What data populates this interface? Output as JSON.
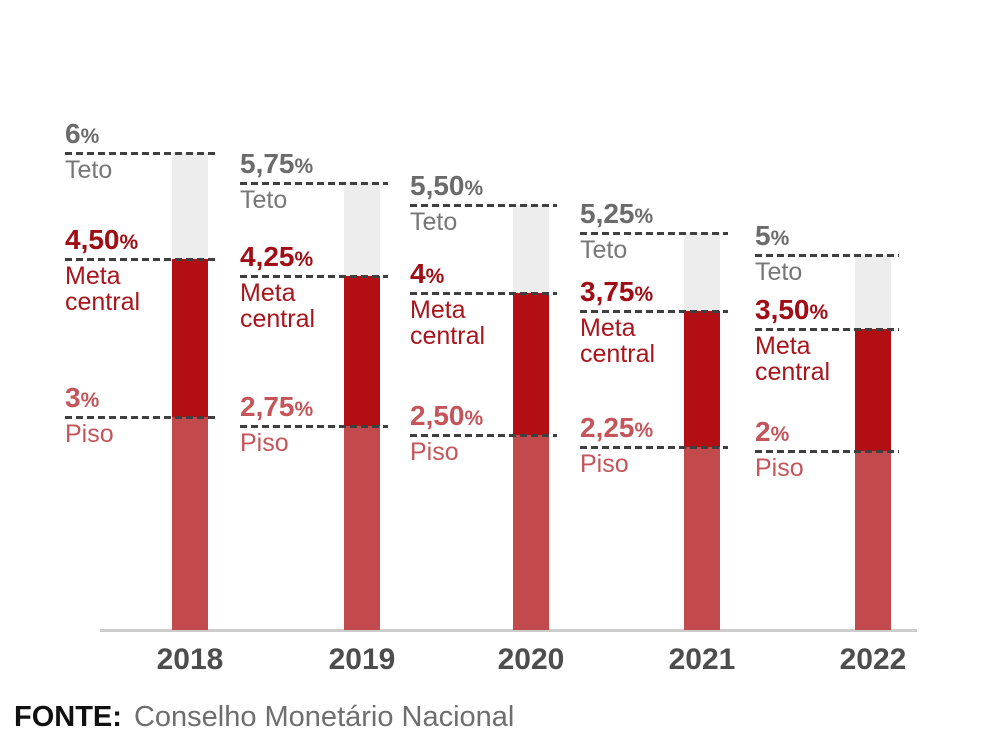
{
  "chart_data": {
    "type": "bar",
    "categories": [
      "2018",
      "2019",
      "2020",
      "2021",
      "2022"
    ],
    "series": [
      {
        "name": "Teto",
        "values": [
          6,
          5.75,
          5.5,
          5.25,
          5
        ]
      },
      {
        "name": "Meta central",
        "values": [
          4.5,
          4.25,
          4,
          3.75,
          3.5
        ]
      },
      {
        "name": "Piso",
        "values": [
          3,
          2.75,
          2.5,
          2.25,
          2
        ]
      }
    ],
    "unit": "%",
    "xlabel": "",
    "ylabel": "",
    "grid": false,
    "legend_position": "inline-annotations",
    "display_labels": [
      {
        "year": "2018",
        "teto": "6%",
        "meta": "4,50%",
        "piso": "3%"
      },
      {
        "year": "2019",
        "teto": "5,75%",
        "meta": "4,25%",
        "piso": "2,75%"
      },
      {
        "year": "2020",
        "teto": "5,50%",
        "meta": "4%",
        "piso": "2,50%"
      },
      {
        "year": "2021",
        "teto": "5,25%",
        "meta": "3,75%",
        "piso": "2,25%"
      },
      {
        "year": "2022",
        "teto": "5%",
        "meta": "3,50%",
        "piso": "2%"
      }
    ]
  },
  "annotations": {
    "teto_label": "Teto",
    "meta_label": "Meta central",
    "piso_label": "Piso"
  },
  "footer": {
    "source_label": "FONTE:",
    "source_text": "Conselho Monetário Nacional"
  },
  "colors": {
    "bar_teto_segment": "#ededed",
    "bar_meta_segment": "#b30e13",
    "bar_piso_segment": "#c34a4c",
    "teto_text_value": "#6b6b6b",
    "teto_text_label": "#777777",
    "meta_text_value": "#a00d14",
    "meta_text_label": "#a8151c",
    "piso_text_value": "#c4555a",
    "piso_text_label": "#c4555a",
    "dash_line": "#3f3f3f",
    "axis_line": "#cccccc",
    "year_text": "#4d4d4d"
  }
}
